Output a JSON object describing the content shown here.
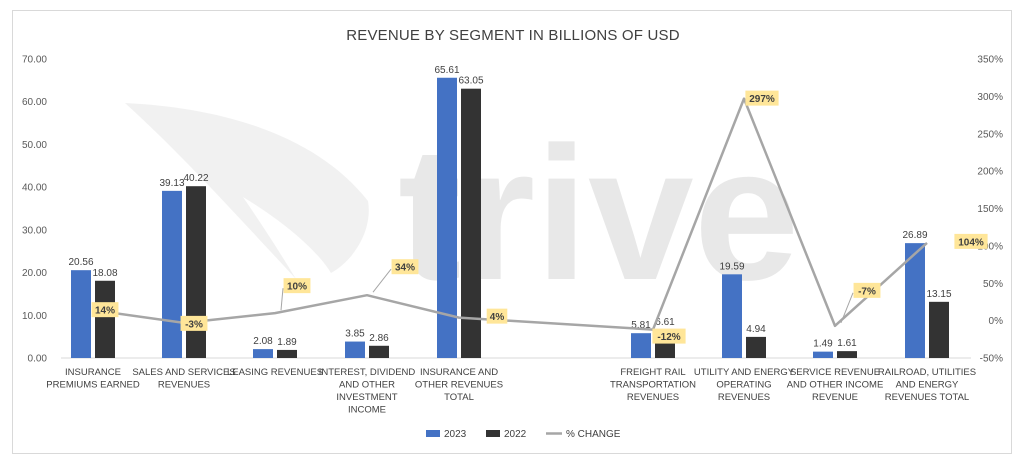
{
  "chart_data": {
    "type": "bar",
    "title": "REVENUE BY SEGMENT IN BILLIONS OF USD",
    "categories": [
      "INSURANCE PREMIUMS EARNED",
      "SALES AND SERVICES REVENUES",
      "LEASING REVENUES",
      "INTEREST, DIVIDEND AND OTHER INVESTMENT INCOME",
      "INSURANCE AND OTHER REVENUES TOTAL",
      "FREIGHT RAIL TRANSPORTATION REVENUES",
      "UTILITY AND ENERGY OPERATING REVENUES",
      "SERVICE REVENUE AND OTHER INCOME REVENUE",
      "RAILROAD, UTILITIES AND ENERGY REVENUES TOTAL"
    ],
    "category_label_lines": [
      [
        "INSURANCE",
        "PREMIUMS EARNED"
      ],
      [
        "SALES AND SERVICES",
        "REVENUES"
      ],
      [
        "LEASING REVENUES"
      ],
      [
        "INTEREST, DIVIDEND",
        "AND OTHER",
        "INVESTMENT",
        "INCOME"
      ],
      [
        "INSURANCE AND",
        "OTHER REVENUES",
        "TOTAL"
      ],
      [
        "FREIGHT RAIL",
        "TRANSPORTATION",
        "REVENUES"
      ],
      [
        "UTILITY AND ENERGY",
        "OPERATING",
        "REVENUES"
      ],
      [
        "SERVICE REVENUE",
        "AND OTHER INCOME",
        "REVENUE"
      ],
      [
        "RAILROAD, UTILITIES",
        "AND ENERGY",
        "REVENUES TOTAL"
      ]
    ],
    "series": [
      {
        "name": "2023",
        "type": "bar",
        "axis": "left",
        "color": "#4472c4",
        "values": [
          20.56,
          39.13,
          2.08,
          3.85,
          65.61,
          5.81,
          19.59,
          1.49,
          26.89
        ],
        "labels": [
          "20.56",
          "39.13",
          "2.08",
          "3.85",
          "65.61",
          "5.81",
          "19.59",
          "1.49",
          "26.89"
        ]
      },
      {
        "name": "2022",
        "type": "bar",
        "axis": "left",
        "color": "#333333",
        "values": [
          18.08,
          40.22,
          1.89,
          2.86,
          63.05,
          6.61,
          4.94,
          1.61,
          13.15
        ],
        "labels": [
          "18.08",
          "40.22",
          "1.89",
          "2.86",
          "63.05",
          "6.61",
          "4.94",
          "1.61",
          "13.15"
        ]
      },
      {
        "name": "% CHANGE",
        "type": "line",
        "axis": "right",
        "color": "#a6a6a6",
        "values": [
          14,
          -3,
          10,
          34,
          4,
          -12,
          297,
          -7,
          104
        ],
        "labels": [
          "14%",
          "-3%",
          "10%",
          "34%",
          "4%",
          "-12%",
          "297%",
          "-7%",
          "104%"
        ]
      }
    ],
    "y_left": {
      "min": 0,
      "max": 70,
      "step": 10,
      "ticks": [
        "0.00",
        "10.00",
        "20.00",
        "30.00",
        "40.00",
        "50.00",
        "60.00",
        "70.00"
      ]
    },
    "y_right": {
      "min": -50,
      "max": 350,
      "step": 50,
      "ticks": [
        "-50%",
        "0%",
        "50%",
        "100%",
        "150%",
        "200%",
        "250%",
        "300%",
        "350%"
      ]
    },
    "grid": false,
    "legend": "bottom-center",
    "legend_items": [
      {
        "name": "2023",
        "kind": "box",
        "color": "#4472c4"
      },
      {
        "name": "2022",
        "kind": "box",
        "color": "#333333"
      },
      {
        "name": "% CHANGE",
        "kind": "line",
        "color": "#a6a6a6"
      }
    ],
    "pct_label_style": {
      "background": "#ffe699"
    }
  },
  "watermark": {
    "text": "trive",
    "icon": "trive-wing-logo-icon"
  }
}
